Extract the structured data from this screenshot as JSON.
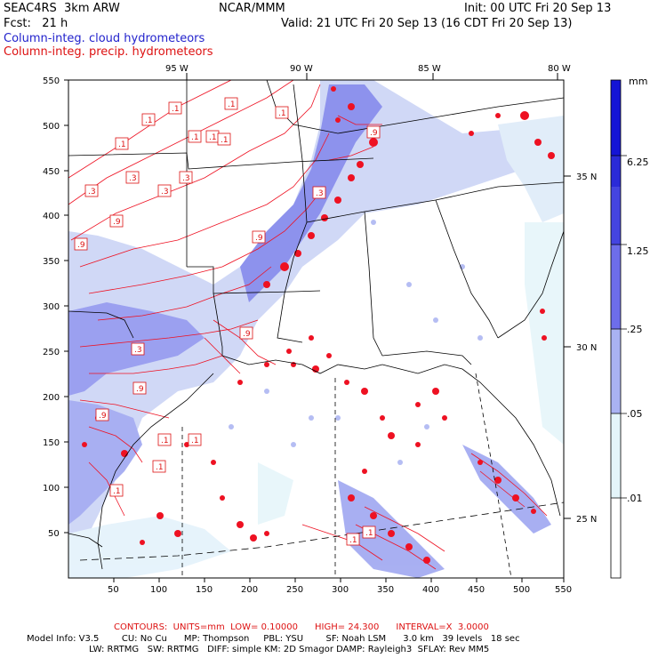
{
  "header": {
    "model": "SEAC4RS  3km ARW",
    "org": "NCAR/MMM",
    "init": "Init: 00 UTC Fri 20 Sep 13",
    "fcst": "Fcst:   21 h",
    "valid": "Valid: 21 UTC Fri 20 Sep 13 (16 CDT Fri 20 Sep 13)",
    "field_cloud": "Column-integ. cloud hydrometeors",
    "field_precip": "Column-integ. precip. hydrometeors"
  },
  "map": {
    "lon_labels": [
      "95 W",
      "90 W",
      "85 W",
      "80 W"
    ],
    "lat_labels": [
      "35 N",
      "30 N",
      "25 N"
    ],
    "x_ticks": [
      "50",
      "100",
      "150",
      "200",
      "250",
      "300",
      "350",
      "400",
      "450",
      "500",
      "550"
    ],
    "y_ticks": [
      "550",
      "500",
      "450",
      "400",
      "350",
      "300",
      "250",
      "200",
      "150",
      "100",
      "50"
    ],
    "contour_labels": [
      ".1",
      ".1",
      ".1",
      ".1",
      ".1",
      ".1",
      ".1",
      ".3",
      ".3",
      ".3",
      ".3",
      ".3",
      ".9",
      ".9",
      ".9",
      ".9",
      ".3",
      ".9",
      ".9",
      ".9",
      ".9",
      ".1",
      ".1",
      ".1",
      ".1",
      ".1",
      ".1",
      ".1"
    ]
  },
  "colorbar": {
    "unit": "mm",
    "labels": [
      "6.25",
      "1.25",
      ".25",
      ".05",
      ".01"
    ],
    "colors": [
      "#1414d6",
      "#3a3ae0",
      "#6b6bea",
      "#a9b2f2",
      "#c8def5",
      "#e4f5fa",
      "#ffffff"
    ]
  },
  "footer": {
    "contours": "CONTOURS:  UNITS=mm  LOW= 0.10000      HIGH= 24.300      INTERVAL=X  3.0000",
    "model_info_1": "Model Info: V3.5        CU: No Cu      MP: Thompson     PBL: YSU        SF: Noah LSM      3.0 km   39 levels   18 sec",
    "model_info_2": "LW: RRTMG   SW: RRTMG   DIFF: simple KM: 2D Smagor DAMP: Rayleigh3  SFLAY: Rev MM5"
  }
}
